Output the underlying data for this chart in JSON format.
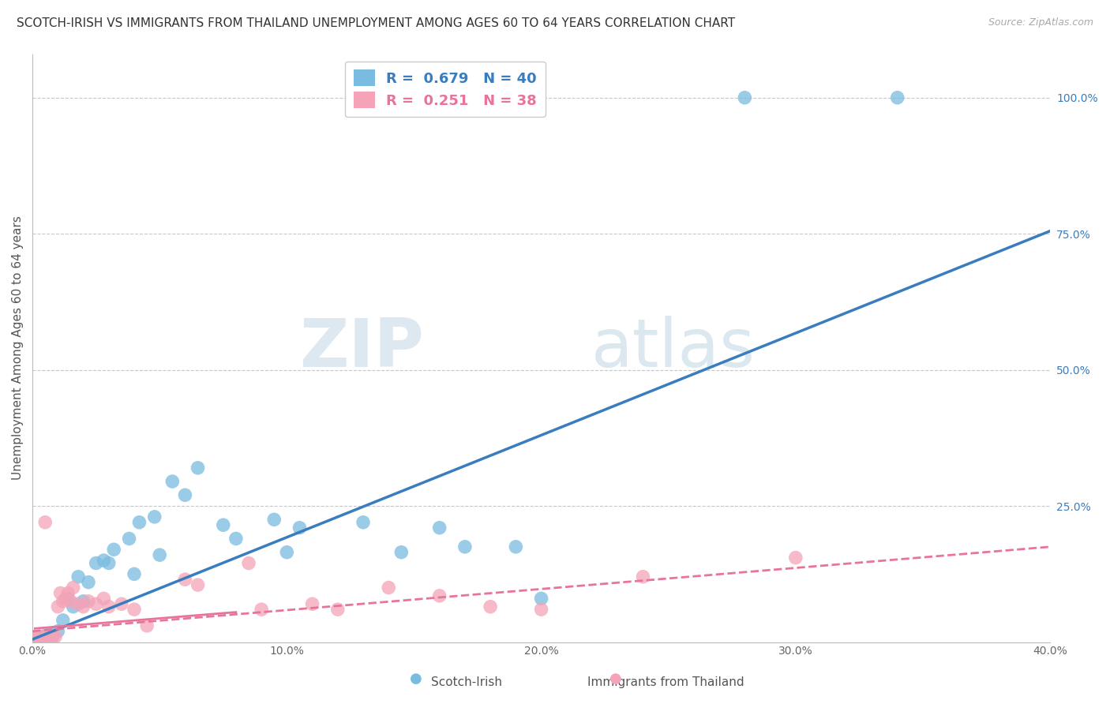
{
  "title": "SCOTCH-IRISH VS IMMIGRANTS FROM THAILAND UNEMPLOYMENT AMONG AGES 60 TO 64 YEARS CORRELATION CHART",
  "source": "Source: ZipAtlas.com",
  "ylabel": "Unemployment Among Ages 60 to 64 years",
  "xlim": [
    0.0,
    0.4
  ],
  "ylim": [
    0.0,
    1.08
  ],
  "xtick_labels": [
    "0.0%",
    "10.0%",
    "20.0%",
    "30.0%",
    "40.0%"
  ],
  "xtick_vals": [
    0.0,
    0.1,
    0.2,
    0.3,
    0.4
  ],
  "ytick_labels": [
    "100.0%",
    "75.0%",
    "50.0%",
    "25.0%"
  ],
  "ytick_vals": [
    1.0,
    0.75,
    0.5,
    0.25
  ],
  "scotch_irish_R": 0.679,
  "scotch_irish_N": 40,
  "thailand_R": 0.251,
  "thailand_N": 38,
  "scotch_irish_color": "#7abce0",
  "thailand_color": "#f4a3b8",
  "scotch_irish_line_color": "#3a7dbf",
  "thailand_line_color": "#e8749a",
  "background_color": "#ffffff",
  "grid_color": "#c8c8c8",
  "watermark_zip": "ZIP",
  "watermark_atlas": "atlas",
  "legend_label_1": "Scotch-Irish",
  "legend_label_2": "Immigrants from Thailand",
  "scotch_irish_scatter": [
    [
      0.001,
      0.005
    ],
    [
      0.002,
      0.008
    ],
    [
      0.003,
      0.01
    ],
    [
      0.004,
      0.005
    ],
    [
      0.005,
      0.012
    ],
    [
      0.006,
      0.008
    ],
    [
      0.007,
      0.015
    ],
    [
      0.008,
      0.01
    ],
    [
      0.01,
      0.02
    ],
    [
      0.012,
      0.04
    ],
    [
      0.014,
      0.08
    ],
    [
      0.016,
      0.065
    ],
    [
      0.018,
      0.12
    ],
    [
      0.02,
      0.075
    ],
    [
      0.022,
      0.11
    ],
    [
      0.025,
      0.145
    ],
    [
      0.028,
      0.15
    ],
    [
      0.03,
      0.145
    ],
    [
      0.032,
      0.17
    ],
    [
      0.038,
      0.19
    ],
    [
      0.04,
      0.125
    ],
    [
      0.042,
      0.22
    ],
    [
      0.048,
      0.23
    ],
    [
      0.05,
      0.16
    ],
    [
      0.055,
      0.295
    ],
    [
      0.06,
      0.27
    ],
    [
      0.065,
      0.32
    ],
    [
      0.075,
      0.215
    ],
    [
      0.08,
      0.19
    ],
    [
      0.095,
      0.225
    ],
    [
      0.1,
      0.165
    ],
    [
      0.105,
      0.21
    ],
    [
      0.13,
      0.22
    ],
    [
      0.145,
      0.165
    ],
    [
      0.16,
      0.21
    ],
    [
      0.17,
      0.175
    ],
    [
      0.19,
      0.175
    ],
    [
      0.2,
      0.08
    ],
    [
      0.28,
      1.0
    ],
    [
      0.34,
      1.0
    ]
  ],
  "thailand_scatter": [
    [
      0.001,
      0.005
    ],
    [
      0.002,
      0.008
    ],
    [
      0.003,
      0.01
    ],
    [
      0.004,
      0.005
    ],
    [
      0.005,
      0.008
    ],
    [
      0.005,
      0.22
    ],
    [
      0.006,
      0.01
    ],
    [
      0.007,
      0.008
    ],
    [
      0.008,
      0.012
    ],
    [
      0.009,
      0.01
    ],
    [
      0.01,
      0.065
    ],
    [
      0.011,
      0.09
    ],
    [
      0.012,
      0.075
    ],
    [
      0.013,
      0.08
    ],
    [
      0.014,
      0.09
    ],
    [
      0.015,
      0.075
    ],
    [
      0.016,
      0.1
    ],
    [
      0.018,
      0.07
    ],
    [
      0.02,
      0.065
    ],
    [
      0.022,
      0.075
    ],
    [
      0.025,
      0.07
    ],
    [
      0.028,
      0.08
    ],
    [
      0.03,
      0.065
    ],
    [
      0.035,
      0.07
    ],
    [
      0.04,
      0.06
    ],
    [
      0.045,
      0.03
    ],
    [
      0.06,
      0.115
    ],
    [
      0.065,
      0.105
    ],
    [
      0.085,
      0.145
    ],
    [
      0.09,
      0.06
    ],
    [
      0.11,
      0.07
    ],
    [
      0.12,
      0.06
    ],
    [
      0.14,
      0.1
    ],
    [
      0.16,
      0.085
    ],
    [
      0.18,
      0.065
    ],
    [
      0.2,
      0.06
    ],
    [
      0.24,
      0.12
    ],
    [
      0.3,
      0.155
    ]
  ],
  "si_trend": [
    0.0,
    0.005,
    0.4,
    0.755
  ],
  "th_trend": [
    0.0,
    0.02,
    0.4,
    0.175
  ],
  "th_trend_solid": [
    0.001,
    0.025,
    0.08,
    0.055
  ],
  "title_fontsize": 11,
  "axis_label_fontsize": 11,
  "tick_fontsize": 10
}
